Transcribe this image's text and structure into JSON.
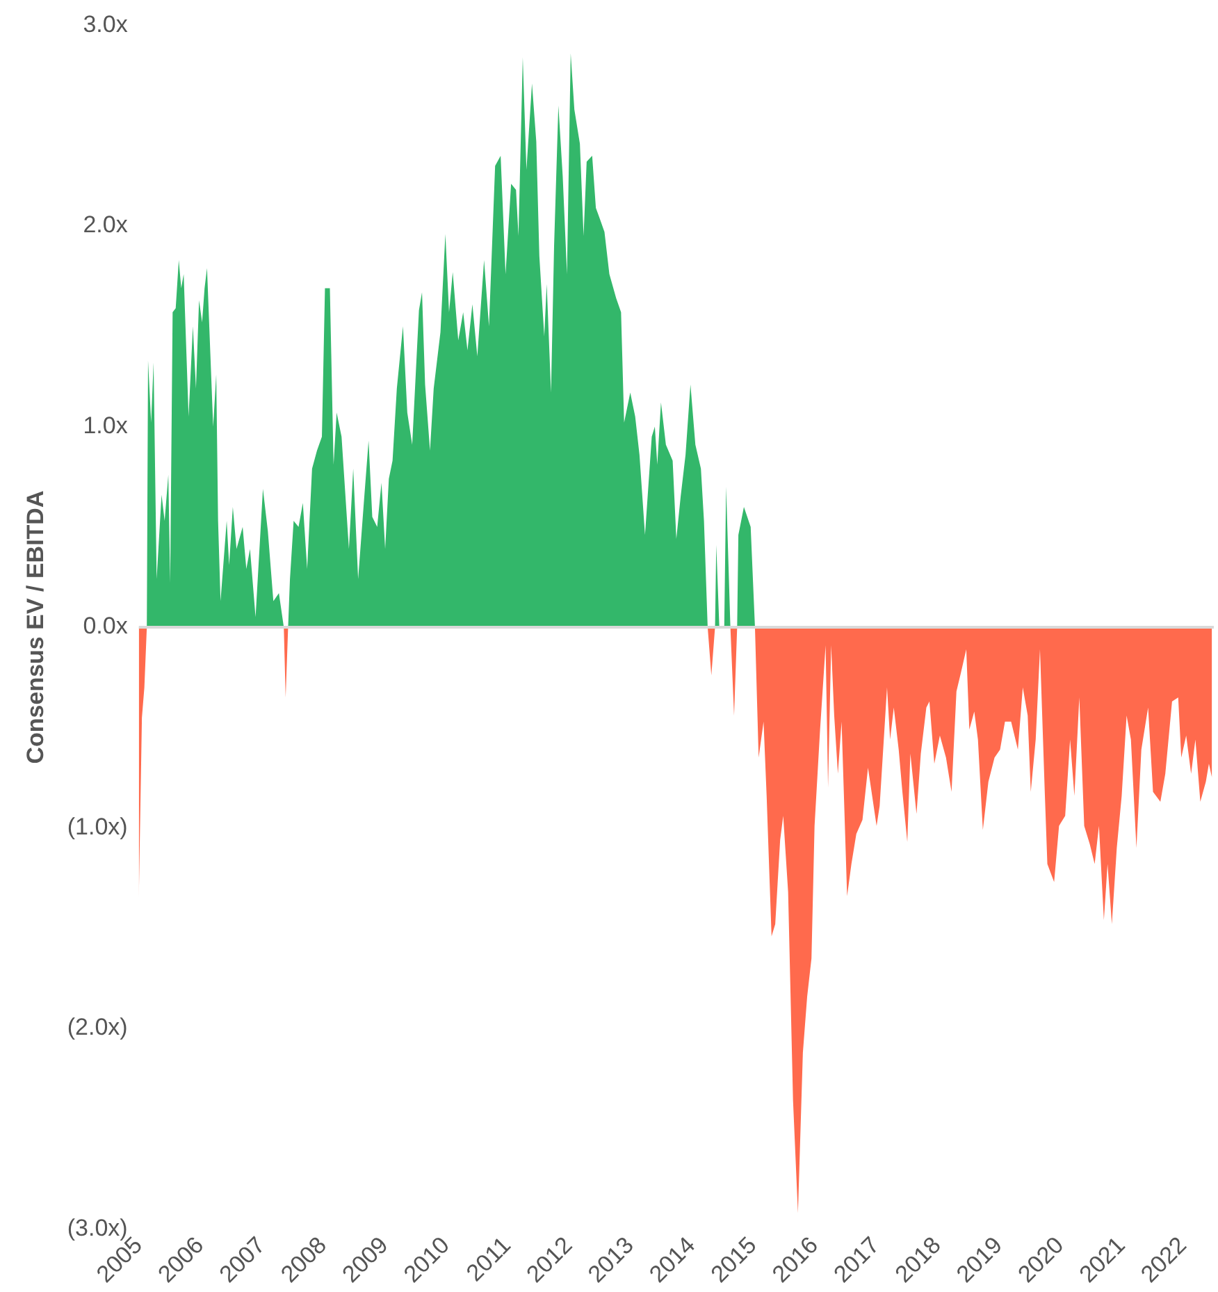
{
  "chart_data": {
    "type": "area",
    "ylabel": "Consensus EV / EBITDA",
    "x": [
      2005.0,
      2005.05,
      2005.09,
      2005.13,
      2005.15,
      2005.2,
      2005.24,
      2005.29,
      2005.37,
      2005.42,
      2005.48,
      2005.51,
      2005.55,
      2005.6,
      2005.65,
      2005.69,
      2005.73,
      2005.81,
      2005.88,
      2005.93,
      2005.98,
      2006.03,
      2006.07,
      2006.11,
      2006.21,
      2006.26,
      2006.29,
      2006.33,
      2006.43,
      2006.47,
      2006.53,
      2006.59,
      2006.69,
      2006.75,
      2006.81,
      2006.9,
      2007.02,
      2007.1,
      2007.19,
      2007.28,
      2007.36,
      2007.39,
      2007.43,
      2007.46,
      2007.52,
      2007.6,
      2007.67,
      2007.74,
      2007.82,
      2007.9,
      2007.98,
      2008.03,
      2008.11,
      2008.17,
      2008.22,
      2008.3,
      2008.42,
      2008.49,
      2008.57,
      2008.67,
      2008.74,
      2008.8,
      2008.88,
      2008.95,
      2009.01,
      2009.07,
      2009.13,
      2009.2,
      2009.3,
      2009.37,
      2009.45,
      2009.56,
      2009.61,
      2009.66,
      2009.74,
      2009.8,
      2009.91,
      2009.99,
      2010.05,
      2010.11,
      2010.2,
      2010.28,
      2010.35,
      2010.43,
      2010.51,
      2010.62,
      2010.7,
      2010.8,
      2010.89,
      2010.97,
      2011.06,
      2011.14,
      2011.18,
      2011.25,
      2011.31,
      2011.4,
      2011.47,
      2011.52,
      2011.6,
      2011.64,
      2011.71,
      2011.76,
      2011.83,
      2011.9,
      2011.97,
      2012.03,
      2012.09,
      2012.18,
      2012.24,
      2012.29,
      2012.38,
      2012.44,
      2012.5,
      2012.58,
      2012.66,
      2012.77,
      2012.85,
      2012.9,
      2013.0,
      2013.08,
      2013.15,
      2013.24,
      2013.35,
      2013.4,
      2013.44,
      2013.5,
      2013.58,
      2013.69,
      2013.75,
      2013.82,
      2013.9,
      2013.98,
      2014.06,
      2014.15,
      2014.2,
      2014.26,
      2014.32,
      2014.38,
      2014.4,
      2014.45,
      2014.53,
      2014.56,
      2014.63,
      2014.69,
      2014.74,
      2014.76,
      2014.85,
      2014.96,
      2015.03,
      2015.09,
      2015.17,
      2015.22,
      2015.3,
      2015.36,
      2015.44,
      2015.49,
      2015.57,
      2015.65,
      2015.73,
      2015.81,
      2015.88,
      2015.95,
      2016.0,
      2016.09,
      2016.18,
      2016.22,
      2016.27,
      2016.32,
      2016.38,
      2016.44,
      2016.53,
      2016.6,
      2016.68,
      2016.78,
      2016.87,
      2017.01,
      2017.06,
      2017.18,
      2017.23,
      2017.29,
      2017.37,
      2017.43,
      2017.51,
      2017.56,
      2017.66,
      2017.73,
      2017.82,
      2017.87,
      2017.95,
      2018.04,
      2018.14,
      2018.23,
      2018.31,
      2018.38,
      2018.47,
      2018.52,
      2018.6,
      2018.66,
      2018.74,
      2018.83,
      2018.93,
      2019.02,
      2019.1,
      2019.2,
      2019.31,
      2019.39,
      2019.47,
      2019.52,
      2019.6,
      2019.67,
      2019.75,
      2019.79,
      2019.9,
      2019.98,
      2020.08,
      2020.16,
      2020.23,
      2020.31,
      2020.39,
      2020.48,
      2020.56,
      2020.63,
      2020.71,
      2020.77,
      2020.84,
      2020.92,
      2021.0,
      2021.08,
      2021.15,
      2021.24,
      2021.32,
      2021.43,
      2021.51,
      2021.63,
      2021.71,
      2021.82,
      2021.92,
      2021.97,
      2022.05,
      2022.13,
      2022.2,
      2022.28,
      2022.37,
      2022.42,
      2022.47
    ],
    "series": [
      {
        "color": "#33b76a",
        "values": [
          0,
          0,
          0,
          0,
          1.33,
          1.02,
          1.32,
          0.24,
          0.66,
          0.53,
          0.76,
          0.22,
          1.57,
          1.59,
          1.83,
          1.69,
          1.76,
          1.05,
          1.5,
          1.19,
          1.63,
          1.52,
          1.69,
          1.79,
          1.0,
          1.26,
          0.53,
          0.13,
          0.53,
          0.31,
          0.6,
          0.39,
          0.5,
          0.29,
          0.39,
          0.05,
          0.69,
          0.48,
          0.13,
          0.17,
          0,
          0,
          0,
          0.24,
          0.53,
          0.5,
          0.62,
          0.29,
          0.79,
          0.88,
          0.95,
          1.69,
          1.69,
          0.81,
          1.07,
          0.95,
          0.39,
          0.79,
          0.24,
          0.65,
          0.93,
          0.55,
          0.5,
          0.72,
          0.39,
          0.74,
          0.83,
          1.19,
          1.5,
          1.07,
          0.91,
          1.58,
          1.67,
          1.21,
          0.88,
          1.19,
          1.47,
          1.96,
          1.57,
          1.77,
          1.43,
          1.57,
          1.38,
          1.61,
          1.35,
          1.83,
          1.5,
          2.3,
          2.35,
          1.76,
          2.21,
          2.18,
          1.95,
          2.84,
          2.28,
          2.71,
          2.42,
          1.85,
          1.45,
          1.71,
          1.17,
          1.9,
          2.6,
          2.25,
          1.76,
          2.86,
          2.58,
          2.41,
          1.95,
          2.32,
          2.35,
          2.09,
          2.04,
          1.97,
          1.76,
          1.64,
          1.57,
          1.02,
          1.17,
          1.05,
          0.86,
          0.46,
          0.95,
          1.0,
          0.81,
          1.12,
          0.91,
          0.83,
          0.44,
          0.65,
          0.86,
          1.21,
          0.91,
          0.79,
          0.53,
          0,
          0,
          0,
          0.41,
          0,
          0,
          0.7,
          0,
          0,
          0,
          0.46,
          0.6,
          0.5,
          0,
          0,
          0,
          0,
          0,
          0,
          0,
          0,
          0,
          0,
          0,
          0,
          0,
          0,
          0,
          0,
          0,
          0,
          0,
          0,
          0,
          0,
          0,
          0,
          0,
          0,
          0,
          0,
          0,
          0,
          0,
          0,
          0,
          0,
          0,
          0,
          0,
          0,
          0,
          0,
          0,
          0,
          0,
          0,
          0,
          0,
          0,
          0,
          0,
          0,
          0,
          0,
          0,
          0,
          0,
          0,
          0,
          0,
          0,
          0,
          0,
          0,
          0,
          0,
          0,
          0,
          0,
          0,
          0,
          0,
          0,
          0,
          0,
          0,
          0,
          0,
          0,
          0,
          0,
          0,
          0,
          0,
          0,
          0,
          0,
          0,
          0,
          0,
          0,
          0,
          0,
          0,
          0,
          0,
          0,
          0,
          0
        ]
      },
      {
        "color": "#ff6a4d",
        "values": [
          -1.35,
          -0.45,
          -0.3,
          0,
          0,
          0,
          0,
          0,
          0,
          0,
          0,
          0,
          0,
          0,
          0,
          0,
          0,
          0,
          0,
          0,
          0,
          0,
          0,
          0,
          0,
          0,
          0,
          0,
          0,
          0,
          0,
          0,
          0,
          0,
          0,
          0,
          0,
          0,
          0,
          0,
          0,
          -0.35,
          0,
          0,
          0,
          0,
          0,
          0,
          0,
          0,
          0,
          0,
          0,
          0,
          0,
          0,
          0,
          0,
          0,
          0,
          0,
          0,
          0,
          0,
          0,
          0,
          0,
          0,
          0,
          0,
          0,
          0,
          0,
          0,
          0,
          0,
          0,
          0,
          0,
          0,
          0,
          0,
          0,
          0,
          0,
          0,
          0,
          0,
          0,
          0,
          0,
          0,
          0,
          0,
          0,
          0,
          0,
          0,
          0,
          0,
          0,
          0,
          0,
          0,
          0,
          0,
          0,
          0,
          0,
          0,
          0,
          0,
          0,
          0,
          0,
          0,
          0,
          0,
          0,
          0,
          0,
          0,
          0,
          0,
          0,
          0,
          0,
          0,
          0,
          0,
          0,
          0,
          0,
          0,
          0,
          0,
          -0.24,
          0,
          0,
          0,
          0,
          0,
          0,
          -0.44,
          0,
          0,
          0,
          0,
          0,
          -0.65,
          -0.47,
          -0.84,
          -1.54,
          -1.48,
          -1.06,
          -0.94,
          -1.32,
          -2.36,
          -2.92,
          -2.12,
          -1.84,
          -1.65,
          -0.99,
          -0.51,
          -0.09,
          -0.8,
          -0.09,
          -0.44,
          -0.73,
          -0.47,
          -1.34,
          -1.18,
          -1.03,
          -0.96,
          -0.7,
          -0.99,
          -0.89,
          -0.3,
          -0.56,
          -0.4,
          -0.61,
          -0.82,
          -1.07,
          -0.63,
          -0.93,
          -0.63,
          -0.4,
          -0.37,
          -0.68,
          -0.54,
          -0.65,
          -0.82,
          -0.32,
          -0.23,
          -0.11,
          -0.51,
          -0.42,
          -0.56,
          -1.01,
          -0.77,
          -0.65,
          -0.61,
          -0.47,
          -0.47,
          -0.61,
          -0.3,
          -0.44,
          -0.82,
          -0.56,
          -0.11,
          -0.84,
          -1.18,
          -1.27,
          -0.99,
          -0.94,
          -0.56,
          -0.84,
          -0.35,
          -0.99,
          -1.08,
          -1.18,
          -0.99,
          -1.46,
          -1.18,
          -1.48,
          -1.1,
          -0.84,
          -0.44,
          -0.56,
          -1.1,
          -0.61,
          -0.4,
          -0.82,
          -0.87,
          -0.73,
          -0.37,
          -0.35,
          -0.65,
          -0.54,
          -0.73,
          -0.56,
          -0.87,
          -0.77,
          -0.68,
          -0.75
        ]
      }
    ],
    "xlim": [
      2005,
      2022.5
    ],
    "xticks": [
      2005,
      2006,
      2007,
      2008,
      2009,
      2010,
      2011,
      2012,
      2013,
      2014,
      2015,
      2016,
      2017,
      2018,
      2019,
      2020,
      2021,
      2022
    ],
    "ylim": [
      -3,
      3
    ],
    "yticks": [
      {
        "value": -3,
        "label": "(3.0x)"
      },
      {
        "value": -2,
        "label": "(2.0x)"
      },
      {
        "value": -1,
        "label": "(1.0x)"
      },
      {
        "value": 0,
        "label": "0.0x"
      },
      {
        "value": 1,
        "label": "1.0x"
      },
      {
        "value": 2,
        "label": "2.0x"
      },
      {
        "value": 3,
        "label": "3.0x"
      }
    ],
    "ref_lines": [
      {
        "axis": "y",
        "value": 0,
        "color": "#d9d9d9"
      }
    ],
    "grid": false,
    "legend": false
  }
}
